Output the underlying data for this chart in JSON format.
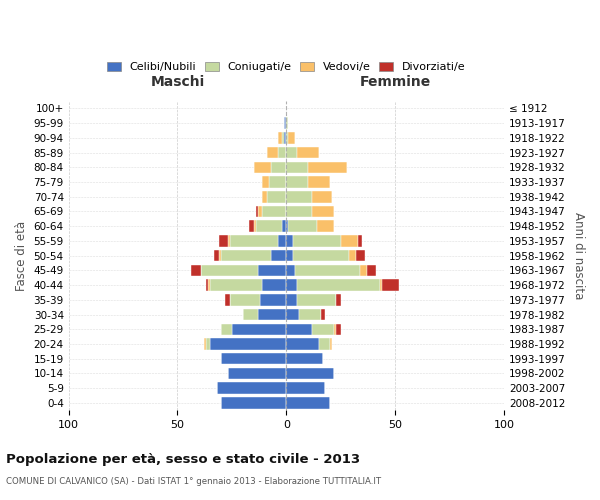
{
  "age_groups": [
    "0-4",
    "5-9",
    "10-14",
    "15-19",
    "20-24",
    "25-29",
    "30-34",
    "35-39",
    "40-44",
    "45-49",
    "50-54",
    "55-59",
    "60-64",
    "65-69",
    "70-74",
    "75-79",
    "80-84",
    "85-89",
    "90-94",
    "95-99",
    "100+"
  ],
  "birth_years": [
    "2008-2012",
    "2003-2007",
    "1998-2002",
    "1993-1997",
    "1988-1992",
    "1983-1987",
    "1978-1982",
    "1973-1977",
    "1968-1972",
    "1963-1967",
    "1958-1962",
    "1953-1957",
    "1948-1952",
    "1943-1947",
    "1938-1942",
    "1933-1937",
    "1928-1932",
    "1923-1927",
    "1918-1922",
    "1913-1917",
    "≤ 1912"
  ],
  "maschi": {
    "celibi": [
      30,
      32,
      27,
      30,
      35,
      25,
      13,
      12,
      11,
      13,
      7,
      4,
      2,
      0,
      0,
      0,
      0,
      0,
      1,
      1,
      0
    ],
    "coniugati": [
      0,
      0,
      0,
      0,
      2,
      5,
      7,
      14,
      24,
      26,
      23,
      22,
      12,
      11,
      9,
      8,
      7,
      4,
      1,
      0,
      0
    ],
    "vedovi": [
      0,
      0,
      0,
      0,
      1,
      0,
      0,
      0,
      1,
      0,
      1,
      1,
      1,
      2,
      2,
      3,
      8,
      5,
      2,
      0,
      0
    ],
    "divorziati": [
      0,
      0,
      0,
      0,
      0,
      0,
      0,
      2,
      1,
      5,
      2,
      4,
      2,
      1,
      0,
      0,
      0,
      0,
      0,
      0,
      0
    ]
  },
  "femmine": {
    "nubili": [
      20,
      18,
      22,
      17,
      15,
      12,
      6,
      5,
      5,
      4,
      3,
      3,
      1,
      0,
      0,
      0,
      0,
      0,
      0,
      0,
      0
    ],
    "coniugate": [
      0,
      0,
      0,
      0,
      5,
      10,
      10,
      18,
      38,
      30,
      26,
      22,
      13,
      12,
      12,
      10,
      10,
      5,
      1,
      1,
      0
    ],
    "vedove": [
      0,
      0,
      0,
      0,
      1,
      1,
      0,
      0,
      1,
      3,
      3,
      8,
      8,
      10,
      9,
      10,
      18,
      10,
      3,
      0,
      0
    ],
    "divorziate": [
      0,
      0,
      0,
      0,
      0,
      2,
      2,
      2,
      8,
      4,
      4,
      2,
      0,
      0,
      0,
      0,
      0,
      0,
      0,
      0,
      0
    ]
  },
  "colors": {
    "celibi": "#4472C4",
    "coniugati": "#C5D9A0",
    "vedovi": "#FAC069",
    "divorziati": "#C0302A"
  },
  "legend_labels": [
    "Celibi/Nubili",
    "Coniugati/e",
    "Vedovi/e",
    "Divorziati/e"
  ],
  "title": "Popolazione per età, sesso e stato civile - 2013",
  "subtitle": "COMUNE DI CALVANICO (SA) - Dati ISTAT 1° gennaio 2013 - Elaborazione TUTTITALIA.IT",
  "xlabel_left": "Maschi",
  "xlabel_right": "Femmine",
  "ylabel_left": "Fasce di età",
  "ylabel_right": "Anni di nascita",
  "xlim": 100,
  "background": "#ffffff"
}
